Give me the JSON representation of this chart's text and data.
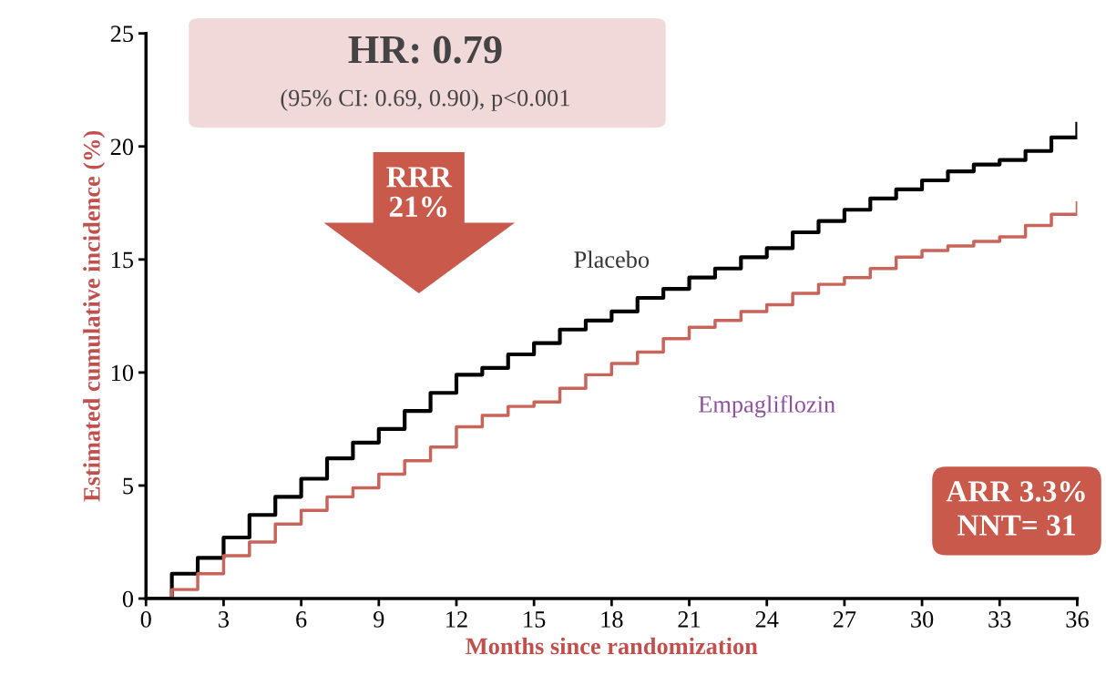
{
  "chart_data": {
    "type": "step",
    "xlabel": "Months since randomization",
    "ylabel": "Estimated cumulative incidence (%)",
    "xlim": [
      0,
      36
    ],
    "ylim": [
      0,
      25
    ],
    "xticks": [
      0,
      3,
      6,
      9,
      12,
      15,
      18,
      21,
      24,
      27,
      30,
      33,
      36
    ],
    "yticks": [
      0,
      5,
      10,
      15,
      20,
      25
    ],
    "x": [
      0,
      1,
      2,
      3,
      4,
      5,
      6,
      7,
      8,
      9,
      10,
      11,
      12,
      13,
      14,
      15,
      16,
      17,
      18,
      19,
      20,
      21,
      22,
      23,
      24,
      25,
      26,
      27,
      28,
      29,
      30,
      31,
      32,
      33,
      34,
      35,
      36
    ],
    "series": [
      {
        "name": "Placebo",
        "color": "#000000",
        "values": [
          0,
          1.1,
          1.8,
          2.7,
          3.7,
          4.5,
          5.3,
          6.2,
          6.9,
          7.5,
          8.3,
          9.1,
          9.9,
          10.2,
          10.8,
          11.3,
          11.9,
          12.3,
          12.7,
          13.3,
          13.7,
          14.2,
          14.6,
          15.1,
          15.5,
          16.2,
          16.7,
          17.2,
          17.7,
          18.1,
          18.5,
          18.9,
          19.2,
          19.4,
          19.8,
          20.4,
          21.0
        ]
      },
      {
        "name": "Empagliflozin",
        "color": "#c8645a",
        "values": [
          0,
          0.4,
          1.1,
          1.9,
          2.5,
          3.3,
          3.9,
          4.5,
          4.9,
          5.5,
          6.1,
          6.7,
          7.6,
          8.1,
          8.5,
          8.7,
          9.3,
          9.9,
          10.4,
          10.9,
          11.5,
          12.0,
          12.3,
          12.7,
          13.0,
          13.5,
          13.9,
          14.2,
          14.6,
          15.1,
          15.4,
          15.6,
          15.8,
          16.0,
          16.5,
          17.0,
          17.5
        ]
      }
    ],
    "annotations": [
      "HR: 0.79",
      "(95% CI: 0.69, 0.90), p<0.001",
      "RRR\n21%",
      "ARR 3.3%\nNNT= 31"
    ],
    "grid": false,
    "legend": false,
    "marker": "none",
    "line_style": "solid"
  }
}
